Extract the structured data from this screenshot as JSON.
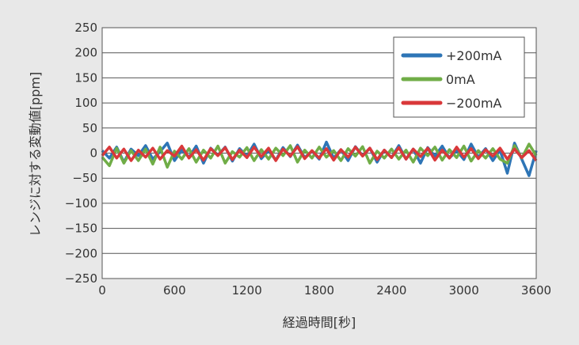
{
  "chart_data": {
    "type": "line",
    "title": "",
    "xlabel": "経過時間[秒]",
    "ylabel": "レンジに対する変動値[ppm]",
    "xlim": [
      0,
      3600
    ],
    "ylim": [
      -250,
      250
    ],
    "x_ticks": [
      0,
      600,
      1200,
      1800,
      2400,
      3000,
      3600
    ],
    "x_tick_labels": [
      "0",
      "600",
      "1200",
      "1800",
      "2400",
      "3000",
      "3600"
    ],
    "y_ticks": [
      250,
      200,
      150,
      100,
      50,
      0,
      -50,
      -100,
      -150,
      -200,
      -250
    ],
    "y_tick_labels": [
      "250",
      "200",
      "150",
      "100",
      "50",
      "0",
      "−50",
      "−100",
      "−150",
      "−200",
      "−250"
    ],
    "grid": "horizontal",
    "legend_position": "top-right",
    "series": [
      {
        "name": "+200mA",
        "color": "#2e75b6",
        "x": [
          0,
          60,
          120,
          180,
          240,
          300,
          360,
          420,
          480,
          540,
          600,
          660,
          720,
          780,
          840,
          900,
          960,
          1020,
          1080,
          1140,
          1200,
          1260,
          1320,
          1380,
          1440,
          1500,
          1560,
          1620,
          1680,
          1740,
          1800,
          1860,
          1920,
          1980,
          2040,
          2100,
          2160,
          2220,
          2280,
          2340,
          2400,
          2460,
          2520,
          2580,
          2640,
          2700,
          2760,
          2820,
          2880,
          2940,
          3000,
          3060,
          3120,
          3180,
          3240,
          3300,
          3360,
          3420,
          3480,
          3540,
          3600
        ],
        "y": [
          5,
          -10,
          12,
          -18,
          8,
          -5,
          15,
          -12,
          3,
          20,
          -15,
          6,
          -8,
          14,
          -20,
          10,
          -4,
          12,
          -16,
          9,
          -6,
          18,
          -11,
          5,
          -14,
          11,
          -7,
          16,
          -9,
          4,
          -12,
          22,
          -10,
          7,
          -15,
          13,
          -5,
          10,
          -18,
          6,
          -9,
          15,
          -12,
          8,
          -20,
          11,
          -6,
          14,
          -10,
          5,
          -13,
          18,
          -8,
          9,
          -15,
          6,
          -40,
          20,
          -12,
          -45,
          5
        ]
      },
      {
        "name": "0mA",
        "color": "#70ad47",
        "x": [
          0,
          60,
          120,
          180,
          240,
          300,
          360,
          420,
          480,
          540,
          600,
          660,
          720,
          780,
          840,
          900,
          960,
          1020,
          1080,
          1140,
          1200,
          1260,
          1320,
          1380,
          1440,
          1500,
          1560,
          1620,
          1680,
          1740,
          1800,
          1860,
          1920,
          1980,
          2040,
          2100,
          2160,
          2220,
          2280,
          2340,
          2400,
          2460,
          2520,
          2580,
          2640,
          2700,
          2760,
          2820,
          2880,
          2940,
          3000,
          3060,
          3120,
          3180,
          3240,
          3300,
          3360,
          3420,
          3480,
          3540,
          3600
        ],
        "y": [
          -8,
          -25,
          10,
          -20,
          5,
          -15,
          8,
          -22,
          12,
          -28,
          4,
          -12,
          9,
          -18,
          6,
          -10,
          14,
          -20,
          3,
          -8,
          11,
          -15,
          7,
          -12,
          10,
          -5,
          15,
          -18,
          6,
          -10,
          12,
          -8,
          5,
          -15,
          9,
          -6,
          13,
          -20,
          4,
          -10,
          8,
          -12,
          6,
          -18,
          10,
          -5,
          12,
          -14,
          7,
          -9,
          14,
          -16,
          5,
          -10,
          9,
          -12,
          -20,
          15,
          -10,
          18,
          -5
        ]
      },
      {
        "name": "−200mA",
        "color": "#d9383a",
        "x": [
          0,
          60,
          120,
          180,
          240,
          300,
          360,
          420,
          480,
          540,
          600,
          660,
          720,
          780,
          840,
          900,
          960,
          1020,
          1080,
          1140,
          1200,
          1260,
          1320,
          1380,
          1440,
          1500,
          1560,
          1620,
          1680,
          1740,
          1800,
          1860,
          1920,
          1980,
          2040,
          2100,
          2160,
          2220,
          2280,
          2340,
          2400,
          2460,
          2520,
          2580,
          2640,
          2700,
          2760,
          2820,
          2880,
          2940,
          3000,
          3060,
          3120,
          3180,
          3240,
          3300,
          3360,
          3420,
          3480,
          3540,
          3600
        ],
        "y": [
          -5,
          12,
          -10,
          8,
          -15,
          6,
          -8,
          10,
          -12,
          5,
          -6,
          14,
          -10,
          7,
          -14,
          9,
          -5,
          11,
          -13,
          6,
          -9,
          12,
          -7,
          10,
          -15,
          8,
          -6,
          13,
          -11,
          5,
          -10,
          9,
          -14,
          7,
          -8,
          12,
          -6,
          10,
          -13,
          6,
          -9,
          11,
          -12,
          8,
          -7,
          10,
          -14,
          6,
          -10,
          12,
          -8,
          9,
          -11,
          7,
          -6,
          10,
          -12,
          8,
          -9,
          5,
          -15
        ]
      }
    ]
  }
}
